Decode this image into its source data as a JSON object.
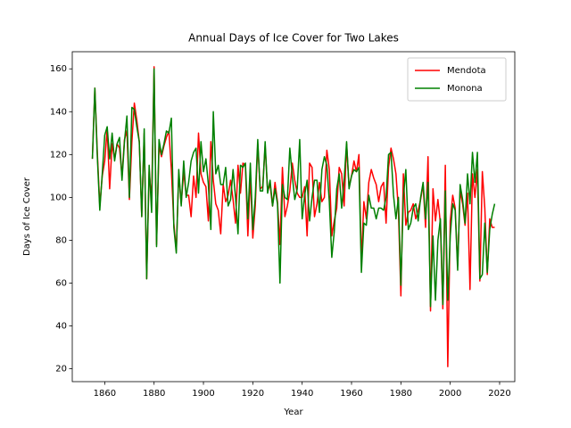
{
  "chart_data": {
    "type": "line",
    "title": "Annual Days of Ice Cover for Two Lakes",
    "xlabel": "Year",
    "ylabel": "Days of Ice Cover",
    "x": [
      1855,
      1856,
      1857,
      1858,
      1859,
      1860,
      1861,
      1862,
      1863,
      1864,
      1865,
      1866,
      1867,
      1868,
      1869,
      1870,
      1871,
      1872,
      1873,
      1874,
      1875,
      1876,
      1877,
      1878,
      1879,
      1880,
      1881,
      1882,
      1883,
      1884,
      1885,
      1886,
      1887,
      1888,
      1889,
      1890,
      1891,
      1892,
      1893,
      1894,
      1895,
      1896,
      1897,
      1898,
      1899,
      1900,
      1901,
      1902,
      1903,
      1904,
      1905,
      1906,
      1907,
      1908,
      1909,
      1910,
      1911,
      1912,
      1913,
      1914,
      1915,
      1916,
      1917,
      1918,
      1919,
      1920,
      1921,
      1922,
      1923,
      1924,
      1925,
      1926,
      1927,
      1928,
      1929,
      1930,
      1931,
      1932,
      1933,
      1934,
      1935,
      1936,
      1937,
      1938,
      1939,
      1940,
      1941,
      1942,
      1943,
      1944,
      1945,
      1946,
      1947,
      1948,
      1949,
      1950,
      1951,
      1952,
      1953,
      1954,
      1955,
      1956,
      1957,
      1958,
      1959,
      1960,
      1961,
      1962,
      1963,
      1964,
      1965,
      1966,
      1967,
      1968,
      1969,
      1970,
      1971,
      1972,
      1973,
      1974,
      1975,
      1976,
      1977,
      1978,
      1979,
      1980,
      1981,
      1982,
      1983,
      1984,
      1985,
      1986,
      1987,
      1988,
      1989,
      1990,
      1991,
      1992,
      1993,
      1994,
      1995,
      1996,
      1997,
      1998,
      1999,
      2000,
      2001,
      2002,
      2003,
      2004,
      2005,
      2006,
      2007,
      2008,
      2009,
      2010,
      2011,
      2012,
      2013,
      2014,
      2015,
      2016,
      2017,
      2018
    ],
    "series": [
      {
        "name": "Mendota",
        "color": "#ff0000",
        "values": [
          118,
          151,
          121,
          96,
          110,
          117,
          132,
          104,
          125,
          118,
          125,
          123,
          110,
          127,
          131,
          99,
          126,
          144,
          136,
          126,
          91,
          130,
          62,
          112,
          99,
          161,
          78,
          124,
          119,
          124,
          128,
          131,
          113,
          88,
          75,
          111,
          97,
          112,
          101,
          101,
          91,
          110,
          100,
          130,
          111,
          107,
          105,
          89,
          126,
          108,
          97,
          94,
          83,
          106,
          98,
          101,
          108,
          99,
          88,
          115,
          102,
          116,
          115,
          82,
          110,
          81,
          96,
          125,
          104,
          105,
          124,
          103,
          106,
          96,
          107,
          98,
          78,
          114,
          91,
          96,
          103,
          116,
          108,
          102,
          100,
          100,
          105,
          82,
          116,
          114,
          91,
          97,
          107,
          98,
          100,
          122,
          113,
          82,
          89,
          95,
          114,
          111,
          96,
          125,
          105,
          110,
          117,
          112,
          120,
          70,
          98,
          90,
          107,
          113,
          109,
          106,
          98,
          105,
          107,
          88,
          114,
          123,
          118,
          111,
          94,
          54,
          111,
          87,
          93,
          94,
          97,
          90,
          94,
          99,
          106,
          86,
          119,
          47,
          104,
          89,
          99,
          88,
          48,
          115,
          21,
          89,
          101,
          95,
          68,
          103,
          97,
          87,
          102,
          57,
          111,
          100,
          113,
          61,
          112,
          95,
          64,
          90,
          86,
          86
        ]
      },
      {
        "name": "Monona",
        "color": "#008000",
        "values": [
          118,
          151,
          119,
          94,
          111,
          129,
          133,
          118,
          130,
          117,
          125,
          128,
          108,
          126,
          138,
          100,
          142,
          141,
          133,
          126,
          91,
          132,
          62,
          115,
          93,
          160,
          77,
          127,
          120,
          125,
          131,
          130,
          137,
          86,
          74,
          113,
          96,
          117,
          100,
          107,
          117,
          121,
          123,
          102,
          126,
          112,
          118,
          106,
          85,
          140,
          111,
          115,
          106,
          106,
          114,
          96,
          99,
          113,
          100,
          83,
          115,
          114,
          116,
          90,
          116,
          85,
          100,
          127,
          103,
          103,
          126,
          102,
          108,
          96,
          104,
          97,
          60,
          106,
          100,
          99,
          123,
          110,
          99,
          104,
          127,
          90,
          101,
          108,
          89,
          100,
          108,
          108,
          93,
          113,
          119,
          115,
          98,
          72,
          84,
          104,
          111,
          95,
          108,
          126,
          104,
          110,
          113,
          112,
          114,
          65,
          88,
          87,
          101,
          95,
          95,
          90,
          95,
          95,
          94,
          100,
          120,
          121,
          101,
          90,
          100,
          59,
          100,
          113,
          85,
          88,
          95,
          97,
          89,
          100,
          107,
          90,
          107,
          49,
          82,
          52,
          80,
          90,
          50,
          103,
          52,
          82,
          97,
          94,
          66,
          106,
          99,
          88,
          111,
          97,
          121,
          107,
          121,
          62,
          64,
          88,
          65,
          85,
          92,
          97
        ]
      }
    ],
    "xlim": [
      1846.85,
      2026.15
    ],
    "xticks": [
      1860,
      1880,
      1900,
      1920,
      1940,
      1960,
      1980,
      2000,
      2020
    ],
    "ylim": [
      14,
      168
    ],
    "yticks": [
      20,
      40,
      60,
      80,
      100,
      120,
      140,
      160
    ],
    "legend": "upper right"
  }
}
